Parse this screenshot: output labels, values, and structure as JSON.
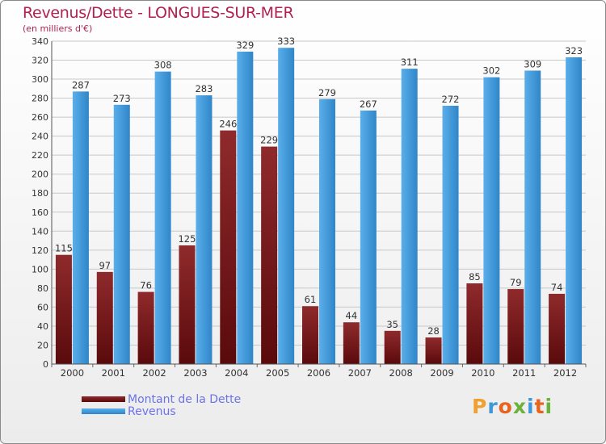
{
  "title": "Revenus/Dette - LONGUES-SUR-MER",
  "subtitle": "(en milliers d'€)",
  "logo_text": "Proxiti",
  "colors": {
    "dette": "#7a1a1c",
    "revenus": "#3d97d8",
    "axis_text": "#333333",
    "grid": "#c8c8c8"
  },
  "chart_data": {
    "type": "bar",
    "title": "Revenus/Dette - LONGUES-SUR-MER",
    "ylabel": "(en milliers d'€)",
    "xlabel": "",
    "categories": [
      "2000",
      "2001",
      "2002",
      "2003",
      "2004",
      "2005",
      "2006",
      "2007",
      "2008",
      "2009",
      "2010",
      "2011",
      "2012"
    ],
    "series": [
      {
        "name": "Montant de la Dette",
        "values": [
          115,
          97,
          76,
          125,
          246,
          229,
          61,
          44,
          35,
          28,
          85,
          79,
          74
        ]
      },
      {
        "name": "Revenus",
        "values": [
          287,
          273,
          308,
          283,
          329,
          333,
          279,
          267,
          311,
          272,
          302,
          309,
          323
        ]
      }
    ],
    "ylim": [
      0,
      340
    ],
    "yticks": [
      0,
      20,
      40,
      60,
      80,
      100,
      120,
      140,
      160,
      180,
      200,
      220,
      240,
      260,
      280,
      300,
      320,
      340
    ],
    "grid": true,
    "legend": "bottom-left"
  }
}
